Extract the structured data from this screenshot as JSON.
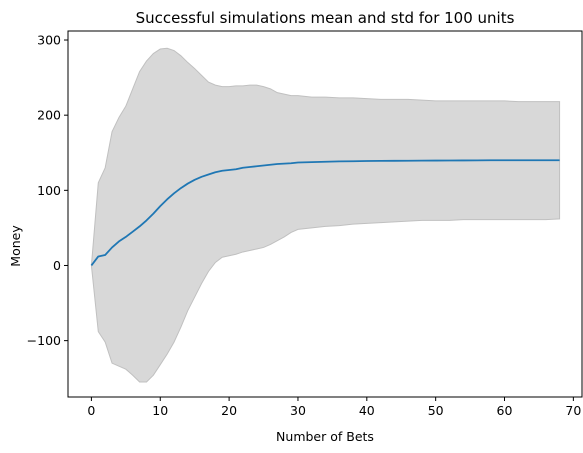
{
  "chart_data": {
    "type": "line",
    "title": "Successful simulations mean and std for 100 units",
    "xlabel": "Number of Bets",
    "ylabel": "Money",
    "xlim": [
      -3.4,
      71.4
    ],
    "ylim": [
      -175,
      312
    ],
    "xticks": [
      0,
      10,
      20,
      30,
      40,
      50,
      60,
      70
    ],
    "yticks": [
      -100,
      0,
      100,
      200,
      300
    ],
    "ytick_labels": [
      "−100",
      "0",
      "100",
      "200",
      "300"
    ],
    "grid": false,
    "series": [
      {
        "role": "mean",
        "color": "#1f77b4",
        "x": [
          0,
          1,
          2,
          3,
          4,
          5,
          6,
          7,
          8,
          9,
          10,
          11,
          12,
          13,
          14,
          15,
          16,
          17,
          18,
          19,
          20,
          21,
          22,
          23,
          24,
          25,
          26,
          27,
          28,
          29,
          30,
          32,
          34,
          36,
          38,
          40,
          42,
          44,
          46,
          48,
          50,
          52,
          54,
          56,
          58,
          60,
          62,
          64,
          66,
          68
        ],
        "y": [
          0,
          12,
          14,
          24,
          32,
          38,
          45,
          52,
          60,
          69,
          79,
          88,
          96,
          103,
          109,
          114,
          118,
          121,
          124,
          126,
          127,
          128,
          130,
          131,
          132,
          133,
          134,
          135,
          135.5,
          136,
          137,
          137.5,
          138,
          138.5,
          138.7,
          139,
          139.2,
          139.3,
          139.4,
          139.5,
          139.6,
          139.7,
          139.8,
          139.9,
          140,
          140,
          140,
          140,
          140,
          140
        ]
      },
      {
        "role": "mean+std",
        "color": "#c0c0c0",
        "x": [
          0,
          1,
          2,
          3,
          4,
          5,
          6,
          7,
          8,
          9,
          10,
          11,
          12,
          13,
          14,
          15,
          16,
          17,
          18,
          19,
          20,
          21,
          22,
          23,
          24,
          25,
          26,
          27,
          28,
          29,
          30,
          32,
          34,
          36,
          38,
          40,
          42,
          44,
          46,
          48,
          50,
          52,
          54,
          56,
          58,
          60,
          62,
          64,
          66,
          68
        ],
        "y": [
          0,
          110,
          130,
          178,
          197,
          212,
          235,
          258,
          272,
          282,
          288,
          289,
          286,
          279,
          270,
          262,
          253,
          244,
          240,
          238,
          238,
          239,
          239,
          240,
          240,
          238,
          235,
          230,
          228,
          226,
          226,
          224,
          224,
          223,
          223,
          222,
          221,
          221,
          221,
          220,
          219,
          219,
          219,
          219,
          219,
          219,
          218,
          218,
          218,
          218
        ]
      },
      {
        "role": "mean-std",
        "color": "#c0c0c0",
        "x": [
          0,
          1,
          2,
          3,
          4,
          5,
          6,
          7,
          8,
          9,
          10,
          11,
          12,
          13,
          14,
          15,
          16,
          17,
          18,
          19,
          20,
          21,
          22,
          23,
          24,
          25,
          26,
          27,
          28,
          29,
          30,
          32,
          34,
          36,
          38,
          40,
          42,
          44,
          46,
          48,
          50,
          52,
          54,
          56,
          58,
          60,
          62,
          64,
          66,
          68
        ],
        "y": [
          0,
          -88,
          -102,
          -130,
          -134,
          -138,
          -146,
          -155,
          -155,
          -146,
          -132,
          -118,
          -102,
          -82,
          -60,
          -42,
          -24,
          -8,
          4,
          11,
          13,
          15,
          18,
          20,
          22,
          24,
          28,
          33,
          38,
          44,
          48,
          50,
          52,
          53,
          55,
          56,
          57,
          58,
          59,
          60,
          60,
          60,
          61,
          61,
          61,
          61,
          61,
          61,
          61,
          62
        ]
      }
    ],
    "band_fill_color": "#d8d8d8",
    "band_edge_color": "#c0c0c0",
    "axes_color": "#000000"
  }
}
